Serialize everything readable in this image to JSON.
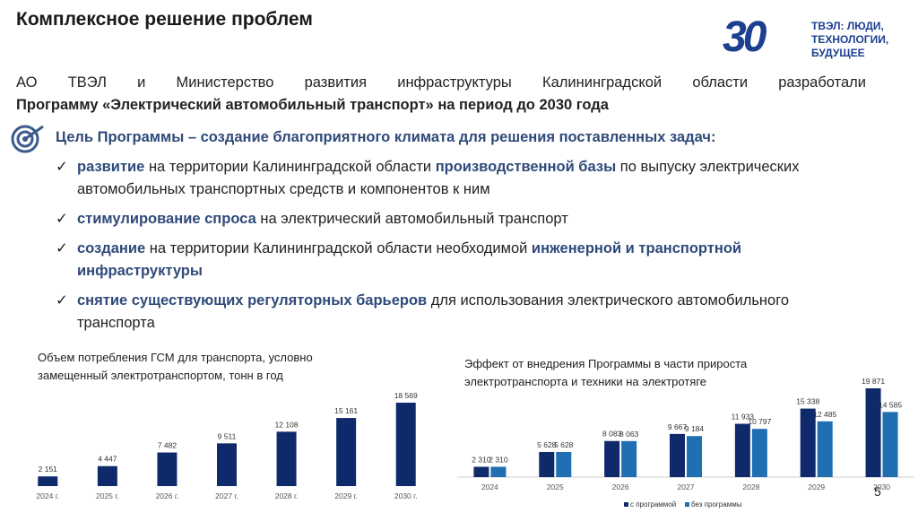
{
  "header": {
    "title": "Комплексное решение проблем"
  },
  "logo": {
    "mark": "30",
    "lines": [
      "ТВЭЛ: ЛЮДИ,",
      "ТЕХНОЛОГИИ,",
      "БУДУЩЕЕ"
    ]
  },
  "intro": [
    "АО ТВЭЛ и Министерство развития инфраструктуры Калининградской области разработали",
    "Программу «Электрический автомобильный транспорт» на период до 2030 года"
  ],
  "goal": "Цель Программы – создание благоприятного климата для решения поставленных задач:",
  "bullets": [
    {
      "parts": [
        {
          "text": "развитие",
          "emphasis": true
        },
        {
          "text": " на территории Калининградской области ",
          "emphasis": false
        },
        {
          "text": "производственной базы",
          "emphasis": true
        },
        {
          "text": " по выпуску электрических автомобильных транспортных средств и компонентов к ним",
          "emphasis": false
        }
      ]
    },
    {
      "parts": [
        {
          "text": "стимулирование спроса",
          "emphasis": true
        },
        {
          "text": " на электрический автомобильный транспорт",
          "emphasis": false
        }
      ]
    },
    {
      "parts": [
        {
          "text": "создание",
          "emphasis": true
        },
        {
          "text": " на территории Калининградской области необходимой ",
          "emphasis": false
        },
        {
          "text": "инженерной и транспортной инфраструктуры",
          "emphasis": true
        }
      ]
    },
    {
      "parts": [
        {
          "text": "снятие существующих регуляторных барьеров",
          "emphasis": true
        },
        {
          "text": " для использования электрического автомобильного транспорта",
          "emphasis": false
        }
      ]
    }
  ],
  "chart_data": [
    {
      "type": "bar",
      "title": [
        "Объем потребления ГСМ для транспорта, условно",
        "замещенный электротранспортом, тонн в год"
      ],
      "categories": [
        "2024 г.",
        "2025 г.",
        "2026 г.",
        "2027 г.",
        "2028 г.",
        "2029 г.",
        "2030 г."
      ],
      "series": [
        {
          "color": "#0f2a6b",
          "values": [
            2151,
            4447,
            7482,
            9511,
            12108,
            15161,
            18569
          ],
          "value_labels": [
            "2 151",
            "4 447",
            "7 482",
            "9 511",
            "12 108",
            "15 161",
            "18 569"
          ]
        }
      ]
    },
    {
      "type": "bar",
      "title": [
        "Эффект от внедрения Программы в части прироста",
        "электротранспорта и техники на электротяге"
      ],
      "categories": [
        "2024",
        "2025",
        "2026",
        "2027",
        "2028",
        "2029",
        "2030"
      ],
      "series": [
        {
          "name": "с программой",
          "color": "#0f2a6b",
          "values": [
            2310,
            5628,
            8083,
            9667,
            11933,
            15338,
            19871
          ],
          "value_labels": [
            "2 310",
            "5 628",
            "8 083",
            "9 667",
            "11 933",
            "15 338",
            "19 871"
          ]
        },
        {
          "name": "без программы",
          "color": "#1f6fb2",
          "values": [
            2310,
            5628,
            8063,
            9184,
            10797,
            12485,
            14585
          ],
          "value_labels": [
            "2 310",
            "5 628",
            "8 063",
            "9 184",
            "10 797",
            "12 485",
            "14 585"
          ]
        }
      ]
    }
  ],
  "page_number": "5"
}
